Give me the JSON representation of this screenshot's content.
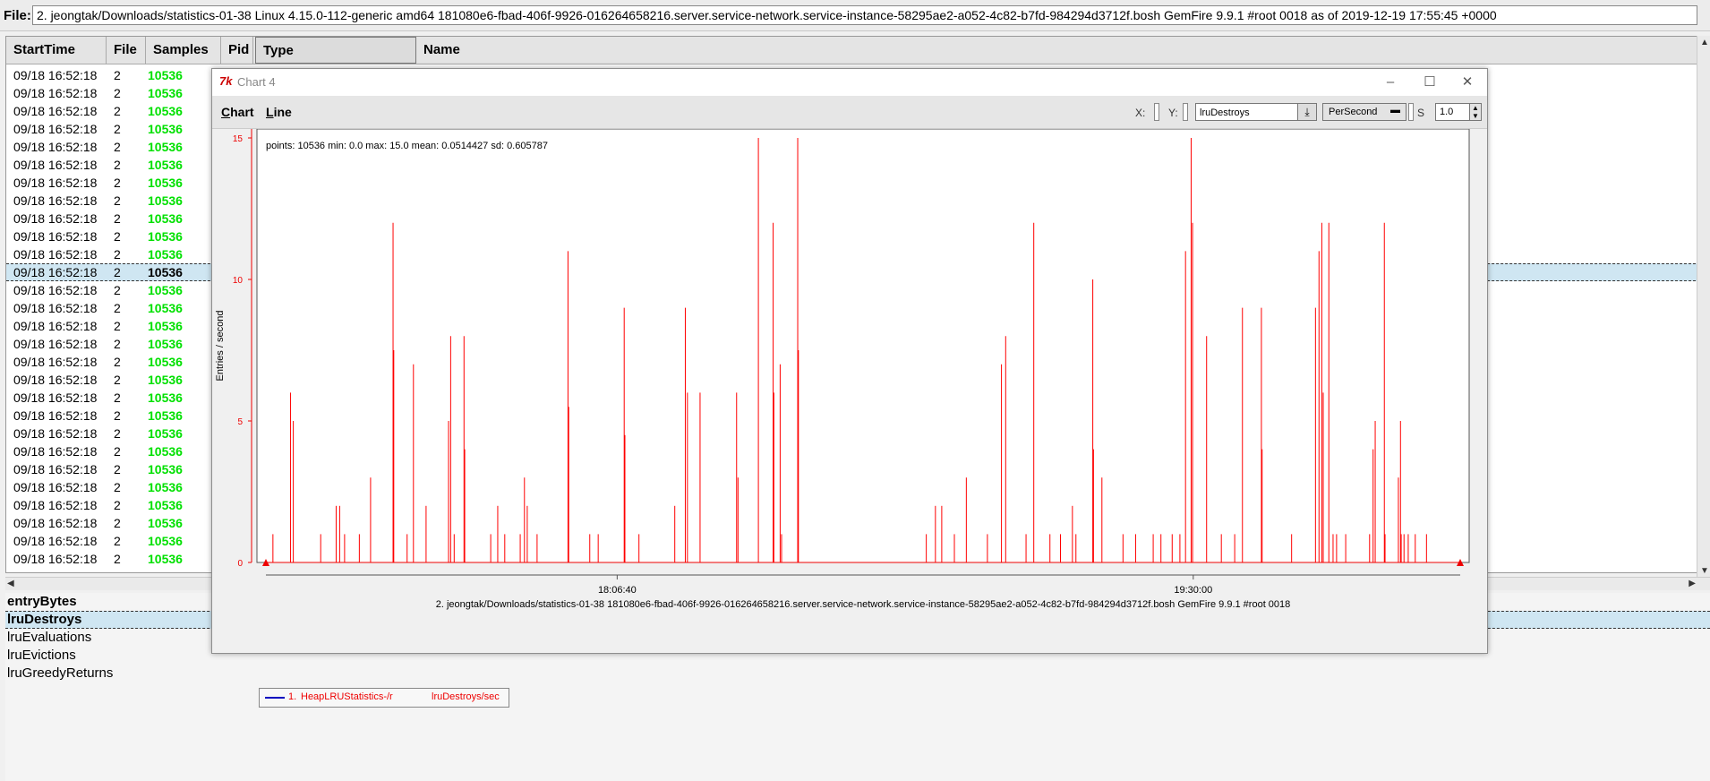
{
  "file_bar": {
    "label": "File:",
    "path": "2. jeongtak/Downloads/statistics-01-38 Linux 4.15.0-112-generic amd64 181080e6-fbad-406f-9926-016264658216.server.service-network.service-instance-58295ae2-a052-4c82-b7fd-984294d3712f.bosh GemFire 9.9.1 #root 0018 as of 2019-12-19 17:55:45 +0000"
  },
  "table": {
    "headers": [
      "StartTime",
      "File",
      "Samples",
      "Pid",
      "Type",
      "Name"
    ],
    "rows": [
      {
        "start": "09/18 16:52:18",
        "file": "2",
        "samples": "10536"
      },
      {
        "start": "09/18 16:52:18",
        "file": "2",
        "samples": "10536"
      },
      {
        "start": "09/18 16:52:18",
        "file": "2",
        "samples": "10536"
      },
      {
        "start": "09/18 16:52:18",
        "file": "2",
        "samples": "10536"
      },
      {
        "start": "09/18 16:52:18",
        "file": "2",
        "samples": "10536"
      },
      {
        "start": "09/18 16:52:18",
        "file": "2",
        "samples": "10536"
      },
      {
        "start": "09/18 16:52:18",
        "file": "2",
        "samples": "10536"
      },
      {
        "start": "09/18 16:52:18",
        "file": "2",
        "samples": "10536"
      },
      {
        "start": "09/18 16:52:18",
        "file": "2",
        "samples": "10536"
      },
      {
        "start": "09/18 16:52:18",
        "file": "2",
        "samples": "10536"
      },
      {
        "start": "09/18 16:52:18",
        "file": "2",
        "samples": "10536"
      },
      {
        "start": "09/18 16:52:18",
        "file": "2",
        "samples": "10536",
        "selected": true
      },
      {
        "start": "09/18 16:52:18",
        "file": "2",
        "samples": "10536"
      },
      {
        "start": "09/18 16:52:18",
        "file": "2",
        "samples": "10536"
      },
      {
        "start": "09/18 16:52:18",
        "file": "2",
        "samples": "10536"
      },
      {
        "start": "09/18 16:52:18",
        "file": "2",
        "samples": "10536"
      },
      {
        "start": "09/18 16:52:18",
        "file": "2",
        "samples": "10536"
      },
      {
        "start": "09/18 16:52:18",
        "file": "2",
        "samples": "10536"
      },
      {
        "start": "09/18 16:52:18",
        "file": "2",
        "samples": "10536"
      },
      {
        "start": "09/18 16:52:18",
        "file": "2",
        "samples": "10536"
      },
      {
        "start": "09/18 16:52:18",
        "file": "2",
        "samples": "10536"
      },
      {
        "start": "09/18 16:52:18",
        "file": "2",
        "samples": "10536"
      },
      {
        "start": "09/18 16:52:18",
        "file": "2",
        "samples": "10536"
      },
      {
        "start": "09/18 16:52:18",
        "file": "2",
        "samples": "10536"
      },
      {
        "start": "09/18 16:52:18",
        "file": "2",
        "samples": "10536"
      },
      {
        "start": "09/18 16:52:18",
        "file": "2",
        "samples": "10536"
      },
      {
        "start": "09/18 16:52:18",
        "file": "2",
        "samples": "10536"
      },
      {
        "start": "09/18 16:52:18",
        "file": "2",
        "samples": "10536"
      }
    ]
  },
  "stats_list": [
    {
      "label": "entryBytes",
      "bold": true
    },
    {
      "label": "lruDestroys",
      "selected": true
    },
    {
      "label": "lruEvaluations"
    },
    {
      "label": "lruEvictions"
    },
    {
      "label": "lruGreedyReturns"
    }
  ],
  "chart_window": {
    "title": "Chart 4",
    "icon": "tk-feather-icon",
    "menus": [
      "Chart",
      "Line"
    ],
    "x_label": "X:",
    "y_label": "Y:",
    "y_stat": "lruDestroys",
    "mode": "PerSecond",
    "scale_label": "S",
    "scale_value": "1.0"
  },
  "chart_data": {
    "type": "line",
    "summary": "points: 10536 min: 0.0 max: 15.0 mean: 0.0514427 sd: 0.605787",
    "ylabel": "Entries / second",
    "ylim": [
      0,
      15
    ],
    "yticks": [
      0,
      5,
      10,
      15
    ],
    "xticks": [
      "18:06:40",
      "19:30:00"
    ],
    "xlabel": "2. jeongtak/Downloads/statistics-01-38 181080e6-fbad-406f-9926-016264658216.server.service-network.service-instance-58295ae2-a052-4c82-b7fd-984294d3712f.bosh GemFire 9.9.1 #root 0018",
    "color": "#ff0000",
    "x_range_minutes": [
      0,
      170
    ],
    "series": [
      {
        "legend_num": "1.",
        "legend_resource": "HeapLRUStatistics-/r",
        "legend_stat": "lruDestroys/sec",
        "spikes": [
          [
            1.0,
            1
          ],
          [
            3.5,
            6
          ],
          [
            3.9,
            5
          ],
          [
            7.8,
            1
          ],
          [
            10.0,
            2
          ],
          [
            10.5,
            2
          ],
          [
            11.2,
            1
          ],
          [
            13.3,
            1
          ],
          [
            14.9,
            3
          ],
          [
            18.1,
            12
          ],
          [
            18.2,
            7.5
          ],
          [
            20.1,
            1
          ],
          [
            21.0,
            7
          ],
          [
            22.8,
            2
          ],
          [
            26.0,
            5
          ],
          [
            26.3,
            8
          ],
          [
            26.8,
            1
          ],
          [
            28.2,
            8
          ],
          [
            28.3,
            4
          ],
          [
            32.0,
            1
          ],
          [
            33.0,
            2
          ],
          [
            34.0,
            1
          ],
          [
            36.2,
            1
          ],
          [
            36.8,
            3
          ],
          [
            37.2,
            2
          ],
          [
            38.6,
            1
          ],
          [
            43.0,
            11
          ],
          [
            43.1,
            5.5
          ],
          [
            46.1,
            1
          ],
          [
            47.3,
            1
          ],
          [
            51.0,
            9
          ],
          [
            51.1,
            4.5
          ],
          [
            53.1,
            1
          ],
          [
            58.2,
            2
          ],
          [
            59.7,
            9
          ],
          [
            60.0,
            6
          ],
          [
            61.8,
            6
          ],
          [
            67.0,
            6
          ],
          [
            67.2,
            3
          ],
          [
            70.1,
            15
          ],
          [
            72.2,
            12
          ],
          [
            72.3,
            6
          ],
          [
            73.2,
            7
          ],
          [
            73.4,
            1
          ],
          [
            75.7,
            15
          ],
          [
            75.8,
            7.5
          ],
          [
            94.0,
            1
          ],
          [
            95.3,
            2
          ],
          [
            96.2,
            2
          ],
          [
            98.0,
            1
          ],
          [
            99.7,
            3
          ],
          [
            102.7,
            1
          ],
          [
            104.7,
            7
          ],
          [
            105.3,
            8
          ],
          [
            108.2,
            1
          ],
          [
            109.3,
            12
          ],
          [
            111.6,
            1
          ],
          [
            113.1,
            1
          ],
          [
            114.8,
            2
          ],
          [
            115.3,
            1
          ],
          [
            117.7,
            10
          ],
          [
            117.8,
            4
          ],
          [
            119.0,
            3
          ],
          [
            122.0,
            1
          ],
          [
            123.8,
            1
          ],
          [
            126.3,
            1
          ],
          [
            127.4,
            1
          ],
          [
            129.0,
            1
          ],
          [
            130.1,
            1
          ],
          [
            130.9,
            11
          ],
          [
            131.7,
            15
          ],
          [
            131.9,
            12
          ],
          [
            133.9,
            8
          ],
          [
            136.0,
            1
          ],
          [
            137.9,
            1
          ],
          [
            139.0,
            9
          ],
          [
            141.7,
            9
          ],
          [
            141.8,
            4
          ],
          [
            146.0,
            1
          ],
          [
            149.4,
            9
          ],
          [
            149.9,
            11
          ],
          [
            150.3,
            12
          ],
          [
            150.5,
            6
          ],
          [
            151.3,
            12
          ],
          [
            151.9,
            1
          ],
          [
            152.4,
            1
          ],
          [
            153.7,
            1
          ],
          [
            157.1,
            1
          ],
          [
            157.6,
            4
          ],
          [
            157.9,
            5
          ],
          [
            159.2,
            12
          ],
          [
            159.3,
            1
          ],
          [
            161.2,
            3
          ],
          [
            161.5,
            5
          ],
          [
            161.6,
            1
          ],
          [
            162.0,
            1
          ],
          [
            162.6,
            1
          ],
          [
            163.6,
            1
          ],
          [
            165.2,
            1
          ]
        ]
      }
    ]
  }
}
